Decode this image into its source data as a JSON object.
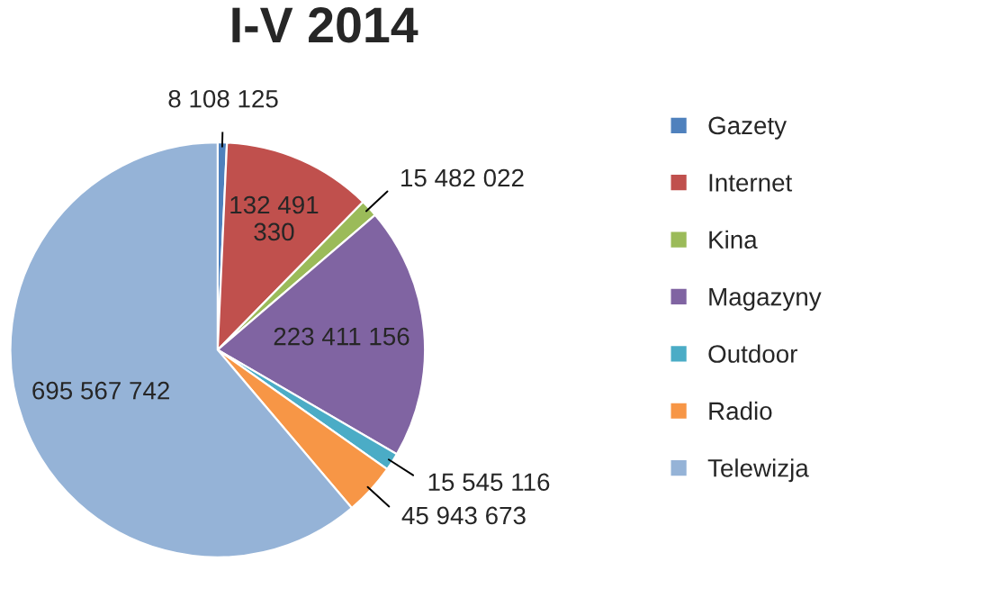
{
  "chart_data": {
    "type": "pie",
    "title": "I-V 2014",
    "categories": [
      "Gazety",
      "Internet",
      "Kina",
      "Magazyny",
      "Outdoor",
      "Radio",
      "Telewizja"
    ],
    "values": [
      8108125,
      132491330,
      15482022,
      223411156,
      15545116,
      45943673,
      695567742
    ],
    "value_labels": [
      "8 108 125",
      "132 491 330",
      "15 482 022",
      "223 411 156",
      "15 545 116",
      "45 943 673",
      "695 567 742"
    ],
    "colors": [
      "#4f81bd",
      "#c0504d",
      "#9bbb59",
      "#8064a2",
      "#4bacc6",
      "#f79646",
      "#95b3d7"
    ],
    "legend": "right"
  }
}
